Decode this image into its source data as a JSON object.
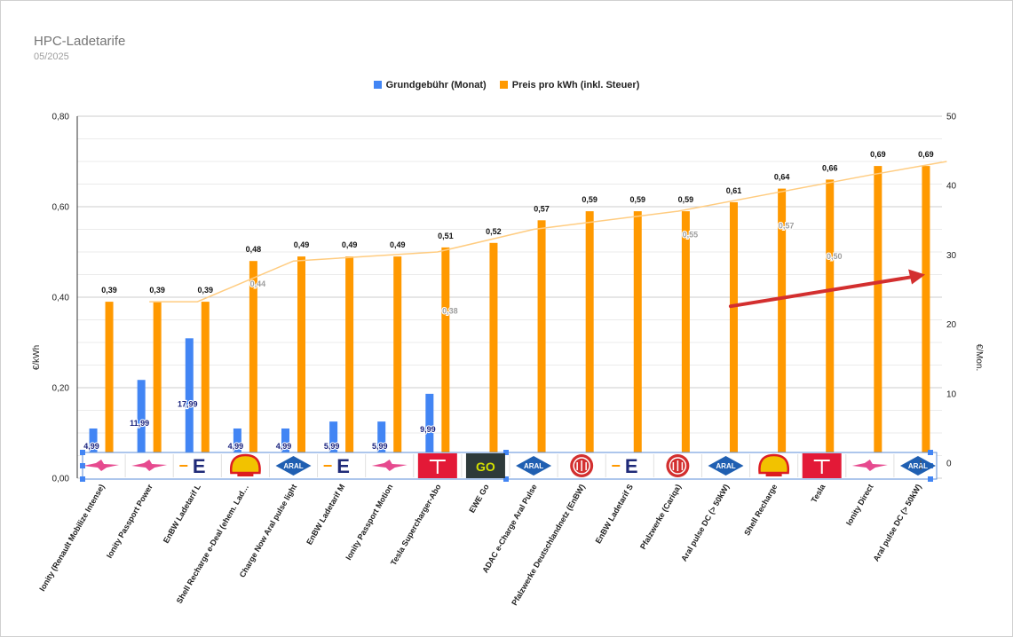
{
  "chart_data": {
    "type": "bar",
    "title": "HPC-Ladetarife",
    "subtitle": "05/2025",
    "ylabel_left": "€/kWh",
    "ylabel_right": "€/Mon.",
    "ylim_left": [
      0,
      0.8
    ],
    "ylim_right": [
      0,
      50
    ],
    "yticks_left": [
      "0,00",
      "0,20",
      "0,40",
      "0,60",
      "0,80"
    ],
    "yticks_right": [
      "0",
      "10",
      "20",
      "30",
      "40",
      "50"
    ],
    "categories": [
      "Ionity (Renault Mobilize Intense)",
      "Ionity Passport Power",
      "EnBW Ladetarif L",
      "Shell Recharge e-Deal (ehem. Lad…",
      "Charge Now Aral pulse light",
      "EnBW Ladetarif M",
      "Ionity Passport Motion",
      "Tesla Supercharger-Abo",
      "EWE Go",
      "ADAC e-Charge Aral Pulse",
      "Pfalzwerke Deutschlandnetz (EnBW)",
      "EnBW Ladetarif S",
      "Pfalzwerke (Cariqa)",
      "Aral pulse DC (> 50kW)",
      "Shell Recharge",
      "Tesla",
      "Ionity Direct",
      "Aral pulse DC (> 50kW)"
    ],
    "series": [
      {
        "name": "Grundgebühr (Monat)",
        "axis": "right",
        "color": "#4285f4",
        "values": [
          4.99,
          11.99,
          17.99,
          4.99,
          4.99,
          5.99,
          5.99,
          9.99,
          null,
          null,
          null,
          null,
          null,
          null,
          null,
          null,
          null,
          null
        ],
        "labels": [
          "4,99",
          "11,99",
          "17,99",
          "4,99",
          "4,99",
          "5,99",
          "5,99",
          "9,99",
          "",
          "",
          "",
          "",
          "",
          "",
          "",
          "",
          "",
          ""
        ]
      },
      {
        "name": "Preis pro kWh (inkl. Steuer)",
        "axis": "left",
        "color": "#ff9900",
        "values": [
          0.39,
          0.39,
          0.39,
          0.48,
          0.49,
          0.49,
          0.49,
          0.51,
          0.52,
          0.57,
          0.59,
          0.59,
          0.59,
          0.61,
          0.64,
          0.66,
          0.69,
          0.69
        ],
        "labels": [
          "0,39",
          "0,39",
          "0,39",
          "0,48",
          "0,49",
          "0,49",
          "0,49",
          "0,51",
          "0,52",
          "0,57",
          "0,59",
          "0,59",
          "0,59",
          "0,61",
          "0,64",
          "0,66",
          "0,69",
          "0,69"
        ]
      }
    ],
    "trendline": {
      "color": "#ffcc80",
      "points": [
        {
          "index": 1,
          "value": 0.39
        },
        {
          "index": 2,
          "value": 0.39
        },
        {
          "index": 4,
          "value": 0.48
        },
        {
          "index": 7,
          "value": 0.5
        },
        {
          "index": 9,
          "value": 0.55
        },
        {
          "index": 12,
          "value": 0.59
        },
        {
          "index": 14,
          "value": 0.63
        },
        {
          "index": 16,
          "value": 0.67
        },
        {
          "index": 17.6,
          "value": 0.7
        }
      ],
      "annotations": [
        {
          "index": 3,
          "value": 0.424,
          "label": "0,44"
        },
        {
          "index": 7,
          "value": 0.364,
          "label": "0,38"
        },
        {
          "index": 12,
          "value": 0.532,
          "label": "0,55"
        },
        {
          "index": 14,
          "value": 0.552,
          "label": "0,57"
        },
        {
          "index": 15,
          "value": 0.484,
          "label": "0,50"
        }
      ]
    },
    "logos": [
      "ionity",
      "ionity",
      "enbw",
      "shell",
      "aral",
      "enbw",
      "ionity",
      "tesla",
      "ewe-go",
      "aral",
      "pfalzwerke",
      "enbw",
      "pfalzwerke",
      "aral",
      "shell",
      "tesla",
      "ionity",
      "aral"
    ],
    "annotation_arrow": {
      "color": "#d32f2f",
      "from": {
        "index": 13.1,
        "value": 0.38
      },
      "to": {
        "index": 17.15,
        "value": 0.45
      }
    },
    "legend_position": "top",
    "grid": true
  }
}
